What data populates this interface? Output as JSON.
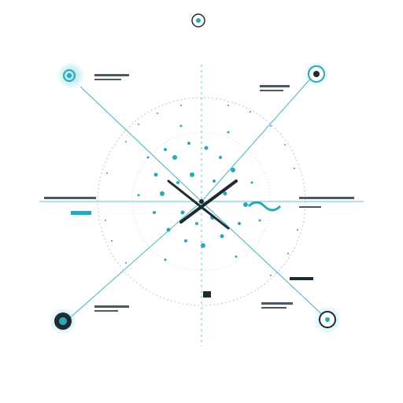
{
  "diagram": {
    "title": "",
    "footer_tag": "",
    "footer_caption": "",
    "accent": "#2aa7b8",
    "accent_light": "#8fdbe6",
    "line": "#3fb0c4",
    "dark": "#1e2b30",
    "callouts": [
      {
        "name": "callout-top-left",
        "icon": "eye-icon",
        "label": ""
      },
      {
        "name": "callout-top-right",
        "icon": "eye-icon",
        "label": ""
      },
      {
        "name": "callout-bottom-left",
        "icon": "lens-icon",
        "label": ""
      },
      {
        "name": "callout-bottom-right",
        "icon": "lens-icon",
        "label": ""
      },
      {
        "name": "callout-left",
        "icon": "",
        "label": ""
      },
      {
        "name": "callout-right",
        "icon": "",
        "label": ""
      }
    ],
    "top_emblem": "eye-icon"
  }
}
